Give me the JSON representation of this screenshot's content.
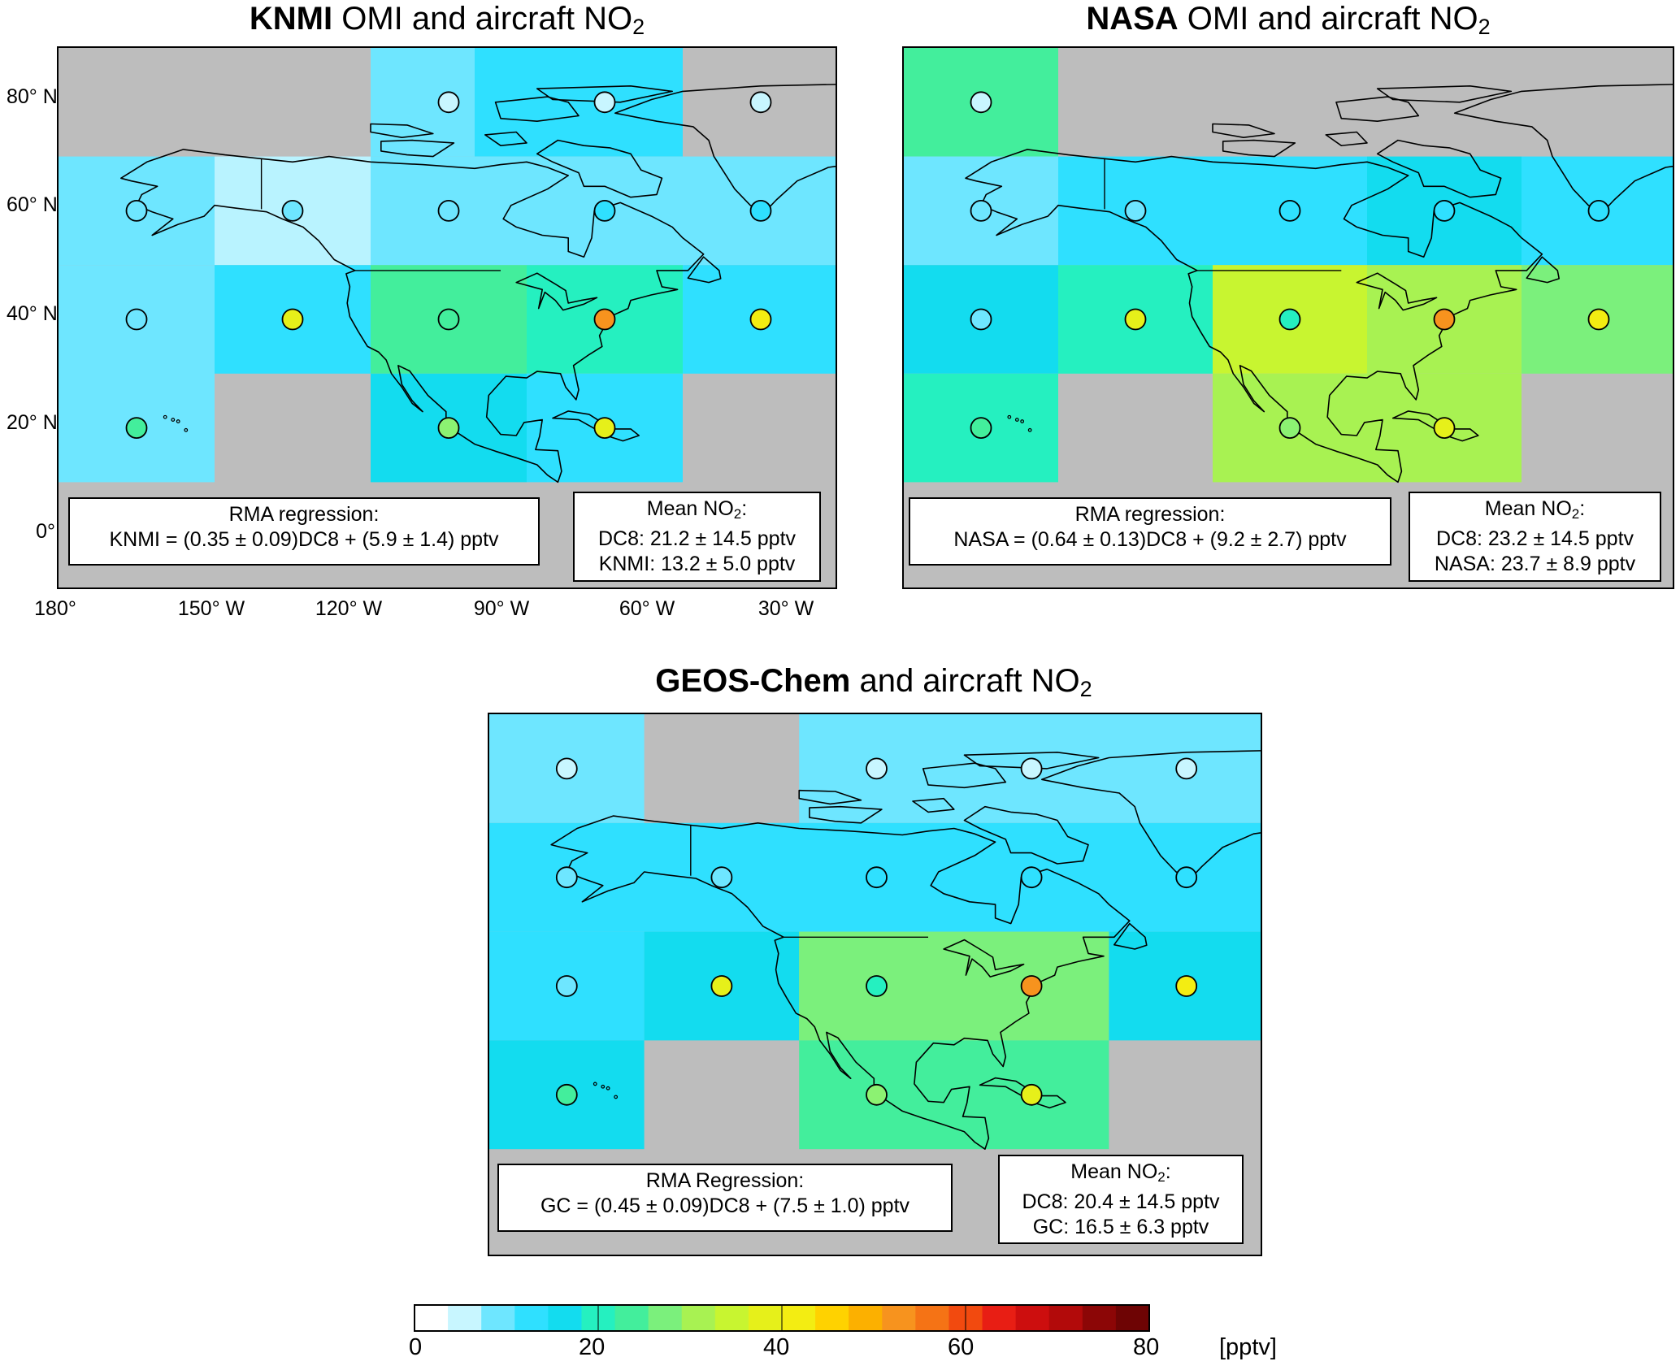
{
  "panels": [
    {
      "id": "knmi",
      "title_bold": "KNMI",
      "title_rest": " OMI and aircraft NO",
      "title_sub": "2",
      "reg_title": "RMA regression:",
      "reg_eq": "KNMI = (0.35 ± 0.09)DC8 + (5.9 ± 1.4) pptv",
      "mean_title": "Mean NO",
      "mean_sub": "2",
      "mean_colon": ":",
      "mean_line1": "DC8: 21.2 ± 14.5 pptv",
      "mean_line2": "KNMI: 13.2 ± 5.0 pptv",
      "cells": [
        {
          "lon": [
            -150,
            -140
          ],
          "lat": [
            70,
            80
          ],
          "color": "#bdbdbd"
        },
        {
          "lon": [
            -120,
            -100
          ],
          "lat": [
            70,
            90
          ],
          "color": "#6ee6ff"
        },
        {
          "lon": [
            -100,
            -60
          ],
          "lat": [
            70,
            90
          ],
          "color": "#2fe0ff"
        },
        {
          "lon": [
            -180,
            -150
          ],
          "lat": [
            50,
            70
          ],
          "color": "#6ee6ff"
        },
        {
          "lon": [
            -150,
            -120
          ],
          "lat": [
            50,
            70
          ],
          "color": "#b9f3ff"
        },
        {
          "lon": [
            -120,
            -90
          ],
          "lat": [
            50,
            70
          ],
          "color": "#6ee6ff"
        },
        {
          "lon": [
            -90,
            -60
          ],
          "lat": [
            50,
            70
          ],
          "color": "#6ee6ff"
        },
        {
          "lon": [
            -60,
            -30
          ],
          "lat": [
            50,
            70
          ],
          "color": "#6ee6ff"
        },
        {
          "lon": [
            -180,
            -150
          ],
          "lat": [
            10,
            50
          ],
          "color": "#6ee6ff"
        },
        {
          "lon": [
            -150,
            -120
          ],
          "lat": [
            30,
            50
          ],
          "color": "#2fe0ff"
        },
        {
          "lon": [
            -120,
            -90
          ],
          "lat": [
            30,
            50
          ],
          "color": "#43ee9c"
        },
        {
          "lon": [
            -90,
            -60
          ],
          "lat": [
            30,
            50
          ],
          "color": "#25f0c0"
        },
        {
          "lon": [
            -60,
            -30
          ],
          "lat": [
            30,
            50
          ],
          "color": "#2fe0ff"
        },
        {
          "lon": [
            -120,
            -90
          ],
          "lat": [
            10,
            30
          ],
          "color": "#13dcef"
        },
        {
          "lon": [
            -90,
            -60
          ],
          "lat": [
            10,
            30
          ],
          "color": "#2fe0ff"
        }
      ],
      "circles": [
        {
          "lon": -105,
          "lat": 80,
          "color": "#c8f6ff"
        },
        {
          "lon": -75,
          "lat": 80,
          "color": "#c8f6ff"
        },
        {
          "lon": -45,
          "lat": 80,
          "color": "#c8f6ff"
        },
        {
          "lon": -165,
          "lat": 60,
          "color": "#6ee6ff"
        },
        {
          "lon": -135,
          "lat": 60,
          "color": "#6ee6ff"
        },
        {
          "lon": -105,
          "lat": 60,
          "color": "#6ee6ff"
        },
        {
          "lon": -75,
          "lat": 60,
          "color": "#2fe0ff"
        },
        {
          "lon": -45,
          "lat": 60,
          "color": "#2fe0ff"
        },
        {
          "lon": -165,
          "lat": 40,
          "color": "#6ee6ff"
        },
        {
          "lon": -135,
          "lat": 40,
          "color": "#e6f01a"
        },
        {
          "lon": -105,
          "lat": 40,
          "color": "#43ee9c"
        },
        {
          "lon": -75,
          "lat": 40,
          "color": "#f7931e"
        },
        {
          "lon": -45,
          "lat": 40,
          "color": "#f3ed12"
        },
        {
          "lon": -165,
          "lat": 20,
          "color": "#43ee9c"
        },
        {
          "lon": -105,
          "lat": 20,
          "color": "#8cf272"
        },
        {
          "lon": -75,
          "lat": 20,
          "color": "#e6f01a"
        }
      ]
    },
    {
      "id": "nasa",
      "title_bold": "NASA",
      "title_rest": " OMI and aircraft NO",
      "title_sub": "2",
      "reg_title": "RMA regression:",
      "reg_eq": "NASA = (0.64 ± 0.13)DC8 + (9.2 ± 2.7) pptv",
      "mean_title": "Mean NO",
      "mean_sub": "2",
      "mean_colon": ":",
      "mean_line1": "DC8: 23.2 ± 14.5 pptv",
      "mean_line2": "NASA: 23.7 ± 8.9 pptv",
      "cells": [
        {
          "lon": [
            -180,
            -150
          ],
          "lat": [
            70,
            90
          ],
          "color": "#43ee9c"
        },
        {
          "lon": [
            -180,
            -150
          ],
          "lat": [
            50,
            70
          ],
          "color": "#6ee6ff"
        },
        {
          "lon": [
            -150,
            -90
          ],
          "lat": [
            50,
            70
          ],
          "color": "#2fe0ff"
        },
        {
          "lon": [
            -90,
            -60
          ],
          "lat": [
            50,
            70
          ],
          "color": "#13dcef"
        },
        {
          "lon": [
            -60,
            -30
          ],
          "lat": [
            50,
            70
          ],
          "color": "#2fe0ff"
        },
        {
          "lon": [
            -180,
            -150
          ],
          "lat": [
            30,
            50
          ],
          "color": "#13dcef"
        },
        {
          "lon": [
            -150,
            -120
          ],
          "lat": [
            30,
            50
          ],
          "color": "#25f0c0"
        },
        {
          "lon": [
            -120,
            -90
          ],
          "lat": [
            30,
            50
          ],
          "color": "#c8f530"
        },
        {
          "lon": [
            -90,
            -60
          ],
          "lat": [
            30,
            50
          ],
          "color": "#a8f252"
        },
        {
          "lon": [
            -60,
            -30
          ],
          "lat": [
            30,
            50
          ],
          "color": "#7bf07c"
        },
        {
          "lon": [
            -180,
            -150
          ],
          "lat": [
            10,
            30
          ],
          "color": "#25f0c0"
        },
        {
          "lon": [
            -120,
            -60
          ],
          "lat": [
            10,
            30
          ],
          "color": "#a8f252"
        }
      ],
      "circles": [
        {
          "lon": -165,
          "lat": 80,
          "color": "#c8f6ff"
        },
        {
          "lon": -165,
          "lat": 60,
          "color": "#6ee6ff"
        },
        {
          "lon": -135,
          "lat": 60,
          "color": "#6ee6ff"
        },
        {
          "lon": -105,
          "lat": 60,
          "color": "#2fe0ff"
        },
        {
          "lon": -75,
          "lat": 60,
          "color": "#2fe0ff"
        },
        {
          "lon": -45,
          "lat": 60,
          "color": "#2fe0ff"
        },
        {
          "lon": -165,
          "lat": 40,
          "color": "#6ee6ff"
        },
        {
          "lon": -135,
          "lat": 40,
          "color": "#e6f01a"
        },
        {
          "lon": -105,
          "lat": 40,
          "color": "#25f0c0"
        },
        {
          "lon": -75,
          "lat": 40,
          "color": "#f7931e"
        },
        {
          "lon": -45,
          "lat": 40,
          "color": "#f3ed12"
        },
        {
          "lon": -165,
          "lat": 20,
          "color": "#43ee9c"
        },
        {
          "lon": -105,
          "lat": 20,
          "color": "#8cf272"
        },
        {
          "lon": -75,
          "lat": 20,
          "color": "#e6f01a"
        }
      ]
    },
    {
      "id": "gc",
      "title_bold": "GEOS-Chem",
      "title_rest": " and aircraft NO",
      "title_sub": "2",
      "reg_title": "RMA Regression:",
      "reg_eq": "GC = (0.45 ± 0.09)DC8 + (7.5 ± 1.0) pptv",
      "mean_title": "Mean NO",
      "mean_sub": "2",
      "mean_colon": ":",
      "mean_line1": "DC8: 20.4 ± 14.5 pptv",
      "mean_line2": "GC: 16.5 ± 6.3 pptv",
      "cells": [
        {
          "lon": [
            -180,
            -150
          ],
          "lat": [
            70,
            90
          ],
          "color": "#6ee6ff"
        },
        {
          "lon": [
            -120,
            -30
          ],
          "lat": [
            70,
            90
          ],
          "color": "#6ee6ff"
        },
        {
          "lon": [
            -180,
            -30
          ],
          "lat": [
            50,
            70
          ],
          "color": "#2fe0ff"
        },
        {
          "lon": [
            -180,
            -150
          ],
          "lat": [
            30,
            50
          ],
          "color": "#2fe0ff"
        },
        {
          "lon": [
            -150,
            -120
          ],
          "lat": [
            30,
            50
          ],
          "color": "#13dcef"
        },
        {
          "lon": [
            -120,
            -60
          ],
          "lat": [
            30,
            50
          ],
          "color": "#7bf07c"
        },
        {
          "lon": [
            -60,
            -30
          ],
          "lat": [
            30,
            50
          ],
          "color": "#13dcef"
        },
        {
          "lon": [
            -180,
            -150
          ],
          "lat": [
            10,
            30
          ],
          "color": "#13dcef"
        },
        {
          "lon": [
            -120,
            -60
          ],
          "lat": [
            10,
            30
          ],
          "color": "#43ee9c"
        }
      ],
      "circles": [
        {
          "lon": -165,
          "lat": 80,
          "color": "#c8f6ff"
        },
        {
          "lon": -105,
          "lat": 80,
          "color": "#c8f6ff"
        },
        {
          "lon": -75,
          "lat": 80,
          "color": "#c8f6ff"
        },
        {
          "lon": -45,
          "lat": 80,
          "color": "#c8f6ff"
        },
        {
          "lon": -165,
          "lat": 60,
          "color": "#6ee6ff"
        },
        {
          "lon": -135,
          "lat": 60,
          "color": "#6ee6ff"
        },
        {
          "lon": -105,
          "lat": 60,
          "color": "#2fe0ff"
        },
        {
          "lon": -75,
          "lat": 60,
          "color": "#2fe0ff"
        },
        {
          "lon": -45,
          "lat": 60,
          "color": "#2fe0ff"
        },
        {
          "lon": -165,
          "lat": 40,
          "color": "#6ee6ff"
        },
        {
          "lon": -135,
          "lat": 40,
          "color": "#e6f01a"
        },
        {
          "lon": -105,
          "lat": 40,
          "color": "#25f0c0"
        },
        {
          "lon": -75,
          "lat": 40,
          "color": "#f7931e"
        },
        {
          "lon": -45,
          "lat": 40,
          "color": "#f3ed12"
        },
        {
          "lon": -165,
          "lat": 20,
          "color": "#43ee9c"
        },
        {
          "lon": -105,
          "lat": 20,
          "color": "#8cf272"
        },
        {
          "lon": -75,
          "lat": 20,
          "color": "#e6f01a"
        }
      ]
    }
  ],
  "lat_labels": [
    "80° N",
    "60° N",
    "40° N",
    "20° N",
    "0°"
  ],
  "lon_labels": [
    "180°",
    "150° W",
    "120° W",
    "90° W",
    "60° W",
    "30° W"
  ],
  "colorbar": {
    "ticks": [
      "0",
      "20",
      "40",
      "60",
      "80"
    ],
    "unit": "[pptv]",
    "colors": [
      "#ffffff",
      "#c8f6ff",
      "#6ee6ff",
      "#2fe0ff",
      "#13dcef",
      "#25f0c0",
      "#43ee9c",
      "#7bf07c",
      "#a8f252",
      "#c8f530",
      "#e6f01a",
      "#f3ed12",
      "#ffd200",
      "#fcb000",
      "#f7931e",
      "#f57315",
      "#f24a0f",
      "#e81e14",
      "#cd0e0e",
      "#b20a0a",
      "#8c0606",
      "#6e0404"
    ]
  }
}
